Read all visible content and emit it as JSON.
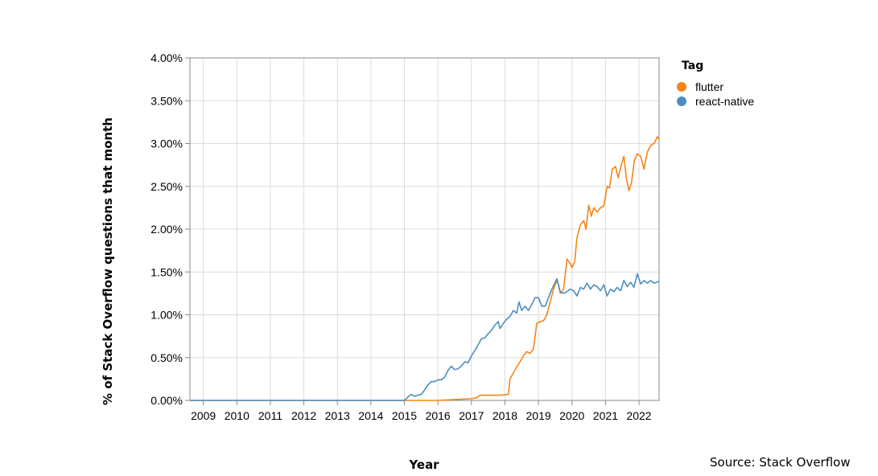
{
  "chart_data": {
    "type": "line",
    "xlabel": "Year",
    "ylabel": "% of Stack Overflow questions that month",
    "x_ticks": [
      "2009",
      "2010",
      "2011",
      "2012",
      "2013",
      "2014",
      "2015",
      "2016",
      "2017",
      "2018",
      "2019",
      "2020",
      "2021",
      "2022"
    ],
    "y_ticks": [
      "0.00%",
      "0.50%",
      "1.00%",
      "1.50%",
      "2.00%",
      "2.50%",
      "3.00%",
      "3.50%",
      "4.00%"
    ],
    "xlim": [
      2008.6,
      2022.6
    ],
    "ylim": [
      0,
      4
    ],
    "grid": true,
    "legend": {
      "title": "Tag",
      "position": "top-right"
    },
    "series": [
      {
        "name": "flutter",
        "color": "#f58518",
        "points": [
          [
            2008.6,
            0
          ],
          [
            2015.0,
            0
          ],
          [
            2016.0,
            0
          ],
          [
            2016.5,
            0.01
          ],
          [
            2017.0,
            0.02
          ],
          [
            2017.15,
            0.03
          ],
          [
            2017.25,
            0.06
          ],
          [
            2017.5,
            0.06
          ],
          [
            2017.8,
            0.06
          ],
          [
            2018.1,
            0.07
          ],
          [
            2018.15,
            0.25
          ],
          [
            2018.25,
            0.32
          ],
          [
            2018.35,
            0.39
          ],
          [
            2018.45,
            0.45
          ],
          [
            2018.55,
            0.52
          ],
          [
            2018.65,
            0.57
          ],
          [
            2018.75,
            0.55
          ],
          [
            2018.85,
            0.6
          ],
          [
            2018.95,
            0.9
          ],
          [
            2019.05,
            0.92
          ],
          [
            2019.15,
            0.93
          ],
          [
            2019.25,
            1.0
          ],
          [
            2019.35,
            1.15
          ],
          [
            2019.45,
            1.3
          ],
          [
            2019.55,
            1.4
          ],
          [
            2019.6,
            1.35
          ],
          [
            2019.65,
            1.25
          ],
          [
            2019.75,
            1.3
          ],
          [
            2019.85,
            1.65
          ],
          [
            2019.95,
            1.6
          ],
          [
            2020.0,
            1.55
          ],
          [
            2020.08,
            1.62
          ],
          [
            2020.15,
            1.9
          ],
          [
            2020.25,
            2.05
          ],
          [
            2020.35,
            2.1
          ],
          [
            2020.42,
            2.0
          ],
          [
            2020.5,
            2.28
          ],
          [
            2020.58,
            2.15
          ],
          [
            2020.65,
            2.25
          ],
          [
            2020.75,
            2.2
          ],
          [
            2020.85,
            2.25
          ],
          [
            2020.95,
            2.27
          ],
          [
            2021.05,
            2.5
          ],
          [
            2021.12,
            2.48
          ],
          [
            2021.2,
            2.7
          ],
          [
            2021.3,
            2.73
          ],
          [
            2021.38,
            2.6
          ],
          [
            2021.47,
            2.75
          ],
          [
            2021.55,
            2.85
          ],
          [
            2021.62,
            2.6
          ],
          [
            2021.7,
            2.45
          ],
          [
            2021.78,
            2.55
          ],
          [
            2021.86,
            2.8
          ],
          [
            2021.95,
            2.88
          ],
          [
            2022.05,
            2.85
          ],
          [
            2022.15,
            2.7
          ],
          [
            2022.25,
            2.9
          ],
          [
            2022.35,
            2.98
          ],
          [
            2022.45,
            3.0
          ],
          [
            2022.55,
            3.08
          ],
          [
            2022.6,
            3.05
          ]
        ]
      },
      {
        "name": "react-native",
        "color": "#4c8ec3",
        "points": [
          [
            2008.6,
            0
          ],
          [
            2015.0,
            0
          ],
          [
            2015.08,
            0.03
          ],
          [
            2015.2,
            0.07
          ],
          [
            2015.3,
            0.05
          ],
          [
            2015.4,
            0.06
          ],
          [
            2015.5,
            0.07
          ],
          [
            2015.6,
            0.12
          ],
          [
            2015.7,
            0.18
          ],
          [
            2015.8,
            0.22
          ],
          [
            2015.9,
            0.22
          ],
          [
            2016.0,
            0.24
          ],
          [
            2016.1,
            0.24
          ],
          [
            2016.2,
            0.27
          ],
          [
            2016.3,
            0.35
          ],
          [
            2016.4,
            0.4
          ],
          [
            2016.5,
            0.36
          ],
          [
            2016.6,
            0.37
          ],
          [
            2016.7,
            0.4
          ],
          [
            2016.8,
            0.45
          ],
          [
            2016.9,
            0.44
          ],
          [
            2017.0,
            0.52
          ],
          [
            2017.1,
            0.58
          ],
          [
            2017.2,
            0.65
          ],
          [
            2017.3,
            0.72
          ],
          [
            2017.4,
            0.73
          ],
          [
            2017.5,
            0.78
          ],
          [
            2017.6,
            0.82
          ],
          [
            2017.7,
            0.88
          ],
          [
            2017.8,
            0.92
          ],
          [
            2017.85,
            0.84
          ],
          [
            2017.95,
            0.9
          ],
          [
            2018.05,
            0.95
          ],
          [
            2018.15,
            0.98
          ],
          [
            2018.25,
            1.05
          ],
          [
            2018.35,
            1.02
          ],
          [
            2018.42,
            1.15
          ],
          [
            2018.5,
            1.05
          ],
          [
            2018.6,
            1.1
          ],
          [
            2018.7,
            1.05
          ],
          [
            2018.8,
            1.12
          ],
          [
            2018.9,
            1.2
          ],
          [
            2019.0,
            1.2
          ],
          [
            2019.1,
            1.1
          ],
          [
            2019.2,
            1.1
          ],
          [
            2019.3,
            1.2
          ],
          [
            2019.4,
            1.3
          ],
          [
            2019.5,
            1.38
          ],
          [
            2019.55,
            1.42
          ],
          [
            2019.65,
            1.27
          ],
          [
            2019.75,
            1.25
          ],
          [
            2019.85,
            1.27
          ],
          [
            2019.95,
            1.3
          ],
          [
            2020.05,
            1.28
          ],
          [
            2020.15,
            1.22
          ],
          [
            2020.25,
            1.32
          ],
          [
            2020.35,
            1.3
          ],
          [
            2020.45,
            1.37
          ],
          [
            2020.55,
            1.3
          ],
          [
            2020.65,
            1.35
          ],
          [
            2020.75,
            1.33
          ],
          [
            2020.85,
            1.28
          ],
          [
            2020.95,
            1.35
          ],
          [
            2021.05,
            1.22
          ],
          [
            2021.15,
            1.3
          ],
          [
            2021.25,
            1.27
          ],
          [
            2021.35,
            1.32
          ],
          [
            2021.45,
            1.28
          ],
          [
            2021.55,
            1.4
          ],
          [
            2021.65,
            1.33
          ],
          [
            2021.75,
            1.38
          ],
          [
            2021.85,
            1.32
          ],
          [
            2021.95,
            1.48
          ],
          [
            2022.05,
            1.36
          ],
          [
            2022.15,
            1.4
          ],
          [
            2022.25,
            1.37
          ],
          [
            2022.35,
            1.4
          ],
          [
            2022.45,
            1.37
          ],
          [
            2022.6,
            1.39
          ]
        ]
      }
    ]
  },
  "source": "Source: Stack Overflow"
}
